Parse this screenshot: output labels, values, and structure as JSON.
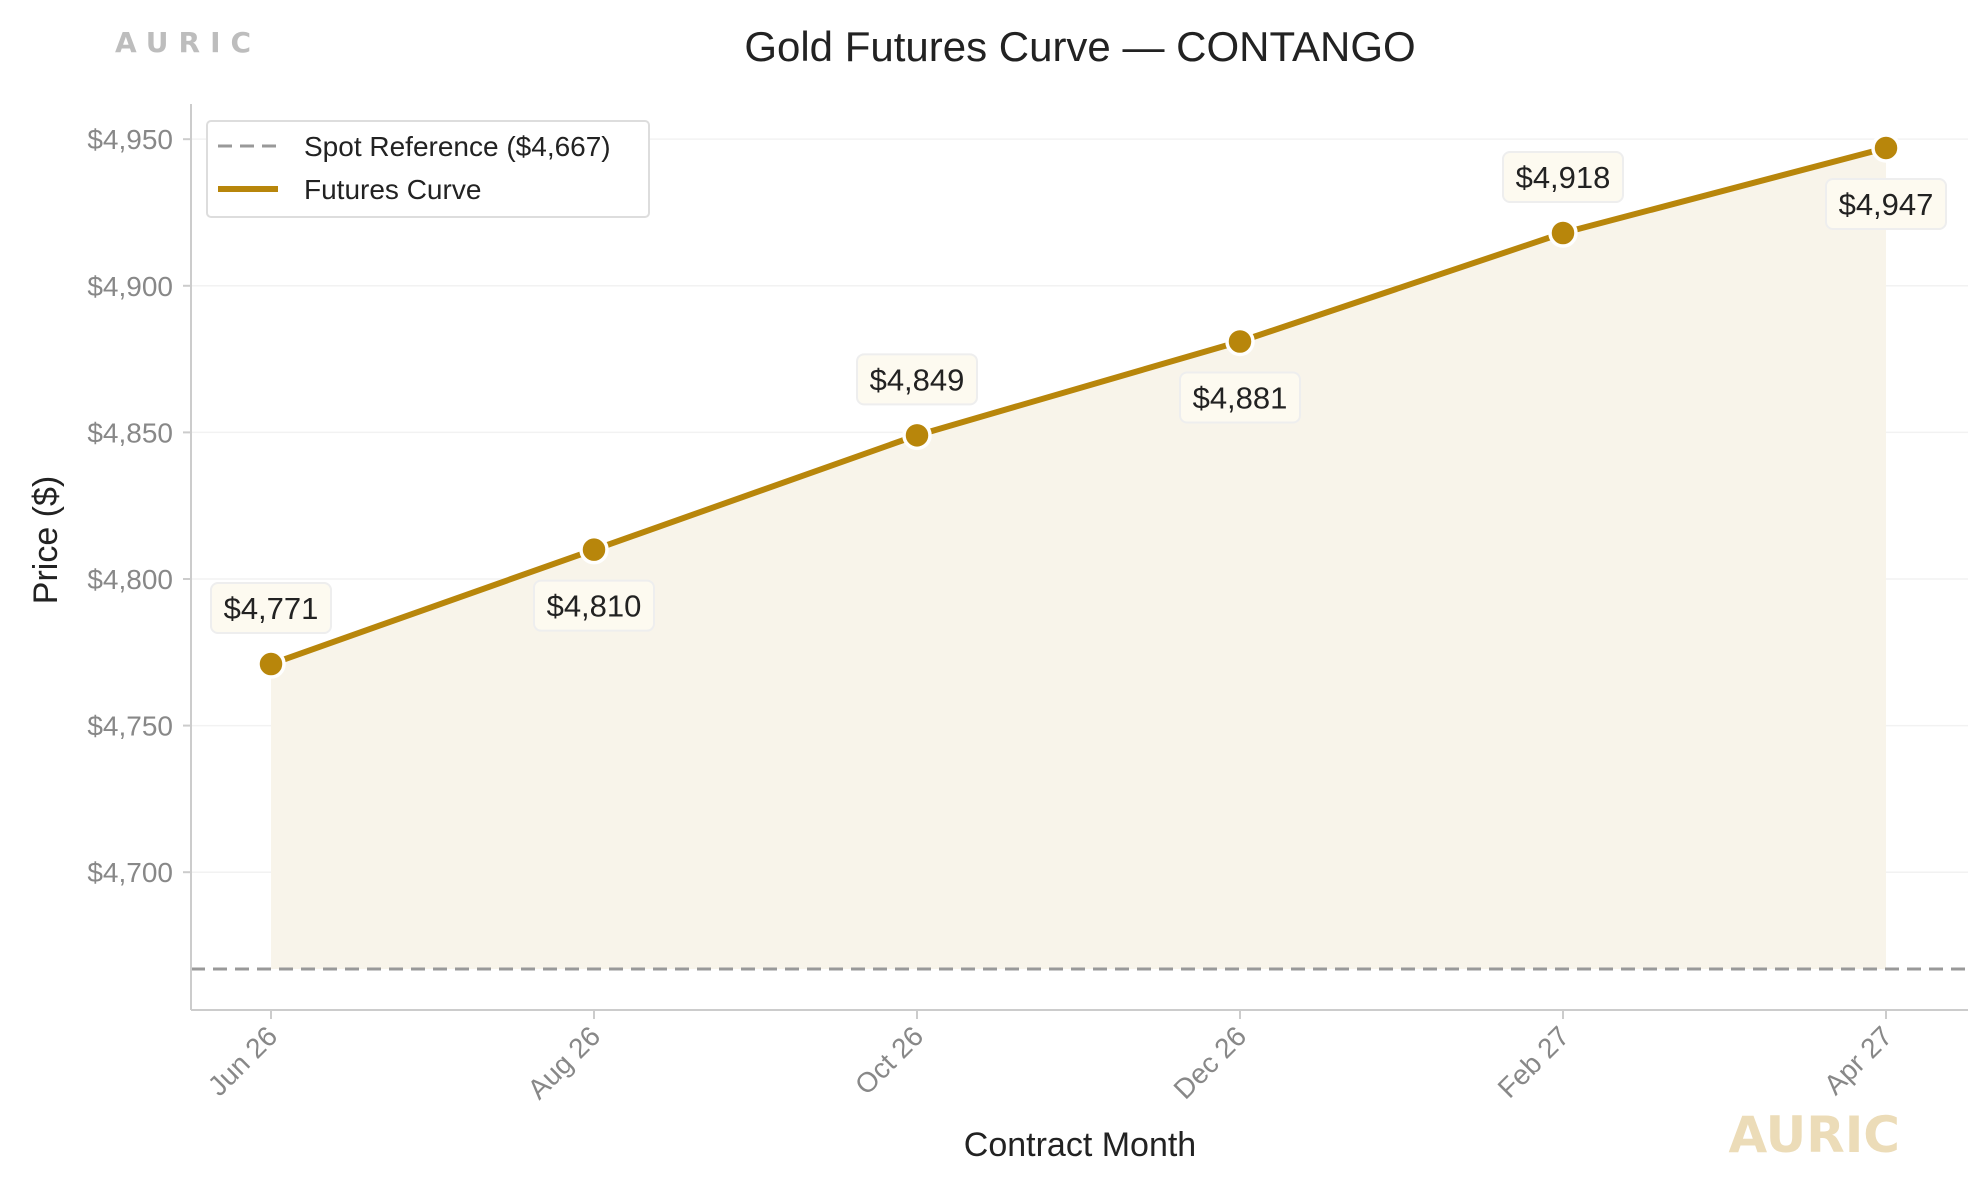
{
  "brand": {
    "top_mark": "AURIC",
    "bottom_mark": "AURIC"
  },
  "colors": {
    "accent": "#b8860b",
    "fill": "#f8f4ea",
    "spot": "#999999",
    "label_bg": "#fdfaf0"
  },
  "chart_data": {
    "type": "line",
    "title": "Gold Futures Curve — CONTANGO",
    "xlabel": "Contract Month",
    "ylabel": "Price ($)",
    "categories": [
      "Jun 26",
      "Aug 26",
      "Oct 26",
      "Dec 26",
      "Feb 27",
      "Apr 27"
    ],
    "series": [
      {
        "name": "Futures Curve",
        "values": [
          4771,
          4810,
          4849,
          4881,
          4918,
          4947
        ],
        "labels": [
          "$4,771",
          "$4,810",
          "$4,849",
          "$4,881",
          "$4,918",
          "$4,947"
        ],
        "label_side": [
          "above",
          "below",
          "above",
          "below",
          "above",
          "below"
        ]
      }
    ],
    "reference_line": {
      "name": "Spot Reference ($4,667)",
      "value": 4667
    },
    "yticks": [
      4700,
      4750,
      4800,
      4850,
      4900,
      4950
    ],
    "ytick_labels": [
      "$4,700",
      "$4,750",
      "$4,800",
      "$4,850",
      "$4,900",
      "$4,950"
    ],
    "ylim": [
      4653,
      4962
    ],
    "legend": {
      "position": "top-left",
      "entries": [
        "Spot Reference ($4,667)",
        "Futures Curve"
      ]
    },
    "grid": true
  }
}
